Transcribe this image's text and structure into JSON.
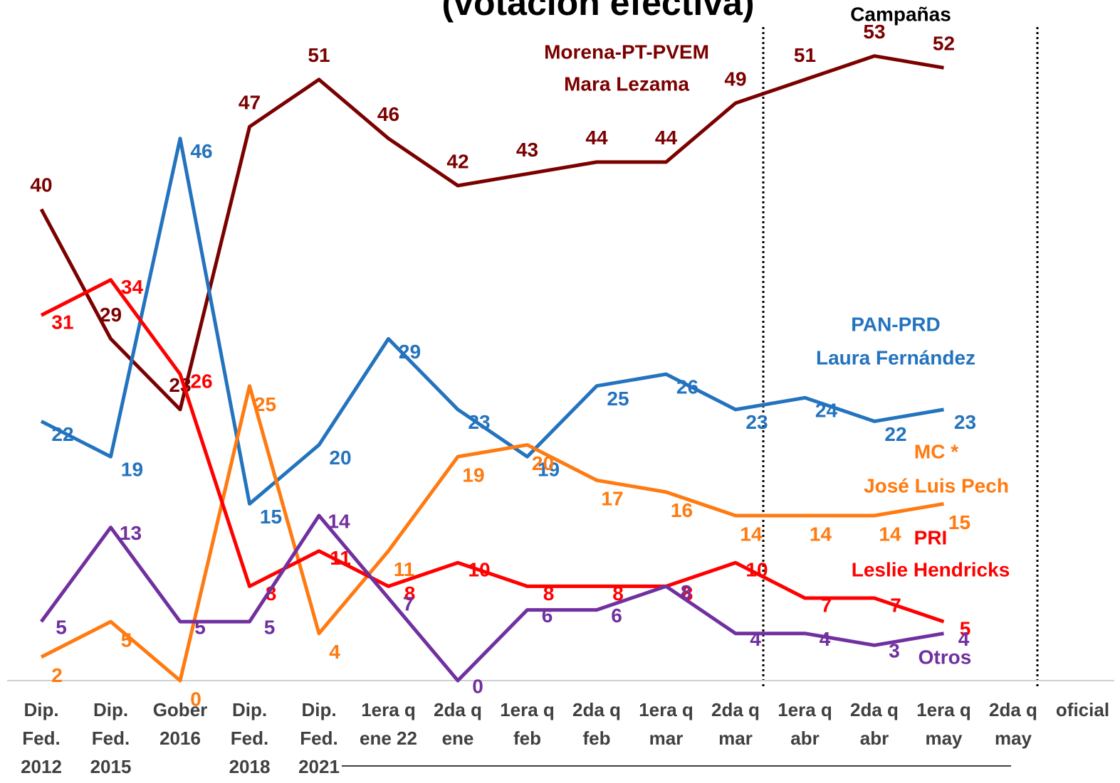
{
  "chart_data": {
    "type": "line",
    "title": "(votación efectiva)",
    "annotation": "Campañas",
    "categories": [
      [
        "Dip.",
        "Fed.",
        "2012"
      ],
      [
        "Dip.",
        "Fed.",
        "2015"
      ],
      [
        "Gober",
        "2016"
      ],
      [
        "Dip.",
        "Fed.",
        "2018"
      ],
      [
        "Dip.",
        "Fed.",
        "2021"
      ],
      [
        "1era q",
        "ene 22"
      ],
      [
        "2da q",
        "ene"
      ],
      [
        "1era q",
        "feb"
      ],
      [
        "2da q",
        "feb"
      ],
      [
        "1era q",
        "mar"
      ],
      [
        "2da q",
        "mar"
      ],
      [
        "1era q",
        "abr"
      ],
      [
        "2da q",
        "abr"
      ],
      [
        "1era q",
        "may"
      ],
      [
        "2da q",
        "may"
      ],
      [
        "oficial"
      ]
    ],
    "ylim": [
      0,
      57.75
    ],
    "series": [
      {
        "name": "Morena-PT-PVEM",
        "candidate": "Mara Lezama",
        "color": "#7B0000",
        "values": [
          40,
          29,
          23,
          47,
          51,
          46,
          42,
          43,
          44,
          44,
          49,
          51,
          53,
          52,
          null,
          null
        ]
      },
      {
        "name": "PAN-PRD",
        "candidate": "Laura Fernández",
        "color": "#2373BE",
        "values": [
          22,
          19,
          46,
          15,
          20,
          29,
          23,
          19,
          25,
          26,
          23,
          24,
          22,
          23,
          null,
          null
        ]
      },
      {
        "name": "MC *",
        "candidate": "José Luis Pech",
        "color": "#FF7A10",
        "values": [
          2,
          5,
          0,
          25,
          4,
          11,
          19,
          20,
          17,
          16,
          14,
          14,
          14,
          15,
          null,
          null
        ]
      },
      {
        "name": "PRI",
        "candidate": "Leslie Hendricks",
        "color": "#FF0000",
        "values": [
          31,
          34,
          26,
          8,
          11,
          8,
          10,
          8,
          8,
          8,
          10,
          7,
          7,
          5,
          null,
          null
        ]
      },
      {
        "name": "Otros",
        "color": "#7030A0",
        "values": [
          5,
          13,
          5,
          5,
          14,
          7,
          0,
          6,
          6,
          8,
          4,
          4,
          3,
          4,
          null,
          null
        ]
      }
    ]
  }
}
